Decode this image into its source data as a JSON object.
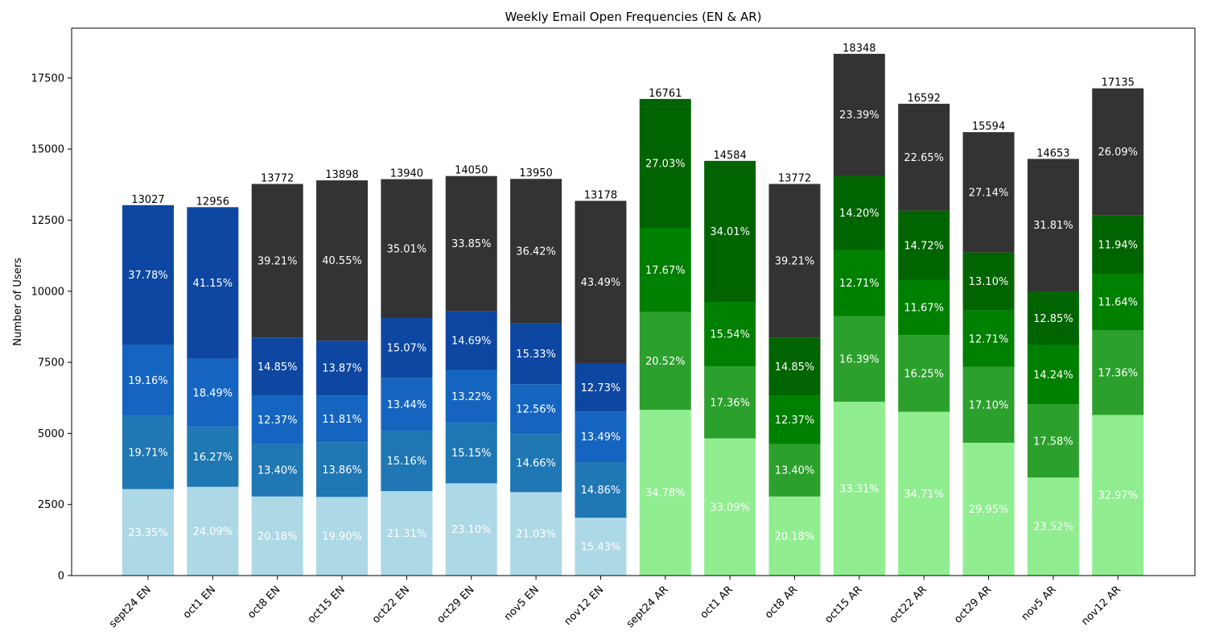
{
  "chart_data": {
    "type": "bar",
    "stacked": true,
    "title": "Weekly Email Open Frequencies (EN & AR)",
    "xlabel": "",
    "ylabel": "Number of Users",
    "ylim": [
      0,
      19250
    ],
    "yticks": [
      0,
      2500,
      5000,
      7500,
      10000,
      12500,
      15000,
      17500
    ],
    "grid": false,
    "legend": "none",
    "categories": [
      "sept24 EN",
      "oct1 EN",
      "oct8 EN",
      "oct15 EN",
      "oct22 EN",
      "oct29 EN",
      "nov5 EN",
      "nov12 EN",
      "sept24 AR",
      "oct1 AR",
      "oct8 AR",
      "oct15 AR",
      "oct22 AR",
      "oct29 AR",
      "nov5 AR",
      "nov12 AR"
    ],
    "totals": [
      13027,
      12956,
      13772,
      13898,
      13940,
      14050,
      13950,
      13178,
      16761,
      14584,
      13772,
      18348,
      16592,
      15594,
      14653,
      17135
    ],
    "bars": [
      {
        "values": [
          3042,
          3121,
          2780,
          2766,
          2971,
          3246,
          2934,
          2034
        ],
        "labels": [
          "23.35%",
          "24.09%",
          "20.18%",
          "19.90%",
          "21.31%",
          "23.10%",
          "21.03%",
          "15.43%"
        ],
        "colors": [
          "#add8e6",
          "#add8e6",
          "#add8e6",
          "#add8e6",
          "#add8e6",
          "#add8e6",
          "#add8e6",
          "#add8e6"
        ]
      }
    ],
    "segments": [
      [
        {
          "value": 3042,
          "label": "23.35%",
          "color": "#add8e6"
        },
        {
          "value": 2568,
          "label": "19.71%",
          "color": "#1f77b4"
        },
        {
          "value": 2496,
          "label": "19.16%",
          "color": "#1565c0"
        },
        {
          "value": 4921,
          "label": "37.78%",
          "color": "#0d47a1"
        }
      ],
      [
        {
          "value": 3121,
          "label": "24.09%",
          "color": "#add8e6"
        },
        {
          "value": 2108,
          "label": "16.27%",
          "color": "#1f77b4"
        },
        {
          "value": 2396,
          "label": "18.49%",
          "color": "#1565c0"
        },
        {
          "value": 5331,
          "label": "41.15%",
          "color": "#0d47a1"
        }
      ],
      [
        {
          "value": 2780,
          "label": "20.18%",
          "color": "#add8e6"
        },
        {
          "value": 1845,
          "label": "13.40%",
          "color": "#1f77b4"
        },
        {
          "value": 1704,
          "label": "12.37%",
          "color": "#1565c0"
        },
        {
          "value": 2045,
          "label": "14.85%",
          "color": "#0d47a1"
        },
        {
          "value": 5398,
          "label": "39.21%",
          "color": "#333333"
        }
      ],
      [
        {
          "value": 2766,
          "label": "19.90%",
          "color": "#add8e6"
        },
        {
          "value": 1926,
          "label": "13.86%",
          "color": "#1f77b4"
        },
        {
          "value": 1641,
          "label": "11.81%",
          "color": "#1565c0"
        },
        {
          "value": 1928,
          "label": "13.87%",
          "color": "#0d47a1"
        },
        {
          "value": 5637,
          "label": "40.55%",
          "color": "#333333"
        }
      ],
      [
        {
          "value": 2971,
          "label": "21.31%",
          "color": "#add8e6"
        },
        {
          "value": 2113,
          "label": "15.16%",
          "color": "#1f77b4"
        },
        {
          "value": 1874,
          "label": "13.44%",
          "color": "#1565c0"
        },
        {
          "value": 2101,
          "label": "15.07%",
          "color": "#0d47a1"
        },
        {
          "value": 4881,
          "label": "35.01%",
          "color": "#333333"
        }
      ],
      [
        {
          "value": 3246,
          "label": "23.10%",
          "color": "#add8e6"
        },
        {
          "value": 2129,
          "label": "15.15%",
          "color": "#1f77b4"
        },
        {
          "value": 1857,
          "label": "13.22%",
          "color": "#1565c0"
        },
        {
          "value": 2064,
          "label": "14.69%",
          "color": "#0d47a1"
        },
        {
          "value": 4754,
          "label": "33.85%",
          "color": "#333333"
        }
      ],
      [
        {
          "value": 2934,
          "label": "21.03%",
          "color": "#add8e6"
        },
        {
          "value": 2045,
          "label": "14.66%",
          "color": "#1f77b4"
        },
        {
          "value": 1752,
          "label": "12.56%",
          "color": "#1565c0"
        },
        {
          "value": 2139,
          "label": "15.33%",
          "color": "#0d47a1"
        },
        {
          "value": 5080,
          "label": "36.42%",
          "color": "#333333"
        }
      ],
      [
        {
          "value": 2034,
          "label": "15.43%",
          "color": "#add8e6"
        },
        {
          "value": 1958,
          "label": "14.86%",
          "color": "#1f77b4"
        },
        {
          "value": 1778,
          "label": "13.49%",
          "color": "#1565c0"
        },
        {
          "value": 1677,
          "label": "12.73%",
          "color": "#0d47a1"
        },
        {
          "value": 5731,
          "label": "43.49%",
          "color": "#333333"
        }
      ],
      [
        {
          "value": 5829,
          "label": "34.78%",
          "color": "#90ee90"
        },
        {
          "value": 3439,
          "label": "20.52%",
          "color": "#2ca02c"
        },
        {
          "value": 2962,
          "label": "17.67%",
          "color": "#008000"
        },
        {
          "value": 4531,
          "label": "27.03%",
          "color": "#006400"
        }
      ],
      [
        {
          "value": 4826,
          "label": "33.09%",
          "color": "#90ee90"
        },
        {
          "value": 2532,
          "label": "17.36%",
          "color": "#2ca02c"
        },
        {
          "value": 2266,
          "label": "15.54%",
          "color": "#008000"
        },
        {
          "value": 4960,
          "label": "34.01%",
          "color": "#006400"
        }
      ],
      [
        {
          "value": 2780,
          "label": "20.18%",
          "color": "#90ee90"
        },
        {
          "value": 1845,
          "label": "13.40%",
          "color": "#2ca02c"
        },
        {
          "value": 1704,
          "label": "12.37%",
          "color": "#008000"
        },
        {
          "value": 2045,
          "label": "14.85%",
          "color": "#006400"
        },
        {
          "value": 5398,
          "label": "39.21%",
          "color": "#333333"
        }
      ],
      [
        {
          "value": 6112,
          "label": "33.31%",
          "color": "#90ee90"
        },
        {
          "value": 3007,
          "label": "16.39%",
          "color": "#2ca02c"
        },
        {
          "value": 2332,
          "label": "12.71%",
          "color": "#008000"
        },
        {
          "value": 2605,
          "label": "14.20%",
          "color": "#006400"
        },
        {
          "value": 4292,
          "label": "23.39%",
          "color": "#333333"
        }
      ],
      [
        {
          "value": 5759,
          "label": "34.71%",
          "color": "#90ee90"
        },
        {
          "value": 2696,
          "label": "16.25%",
          "color": "#2ca02c"
        },
        {
          "value": 1936,
          "label": "11.67%",
          "color": "#008000"
        },
        {
          "value": 2443,
          "label": "14.72%",
          "color": "#006400"
        },
        {
          "value": 3758,
          "label": "22.65%",
          "color": "#333333"
        }
      ],
      [
        {
          "value": 4670,
          "label": "29.95%",
          "color": "#90ee90"
        },
        {
          "value": 2667,
          "label": "17.10%",
          "color": "#2ca02c"
        },
        {
          "value": 1982,
          "label": "12.71%",
          "color": "#008000"
        },
        {
          "value": 2043,
          "label": "13.10%",
          "color": "#006400"
        },
        {
          "value": 4232,
          "label": "27.14%",
          "color": "#333333"
        }
      ],
      [
        {
          "value": 3446,
          "label": "23.52%",
          "color": "#90ee90"
        },
        {
          "value": 2576,
          "label": "17.58%",
          "color": "#2ca02c"
        },
        {
          "value": 2087,
          "label": "14.24%",
          "color": "#008000"
        },
        {
          "value": 1883,
          "label": "12.85%",
          "color": "#006400"
        },
        {
          "value": 4661,
          "label": "31.81%",
          "color": "#333333"
        }
      ],
      [
        {
          "value": 5649,
          "label": "32.97%",
          "color": "#90ee90"
        },
        {
          "value": 2974,
          "label": "17.36%",
          "color": "#2ca02c"
        },
        {
          "value": 1994,
          "label": "11.64%",
          "color": "#008000"
        },
        {
          "value": 2046,
          "label": "11.94%",
          "color": "#006400"
        },
        {
          "value": 4472,
          "label": "26.09%",
          "color": "#333333"
        }
      ]
    ]
  }
}
